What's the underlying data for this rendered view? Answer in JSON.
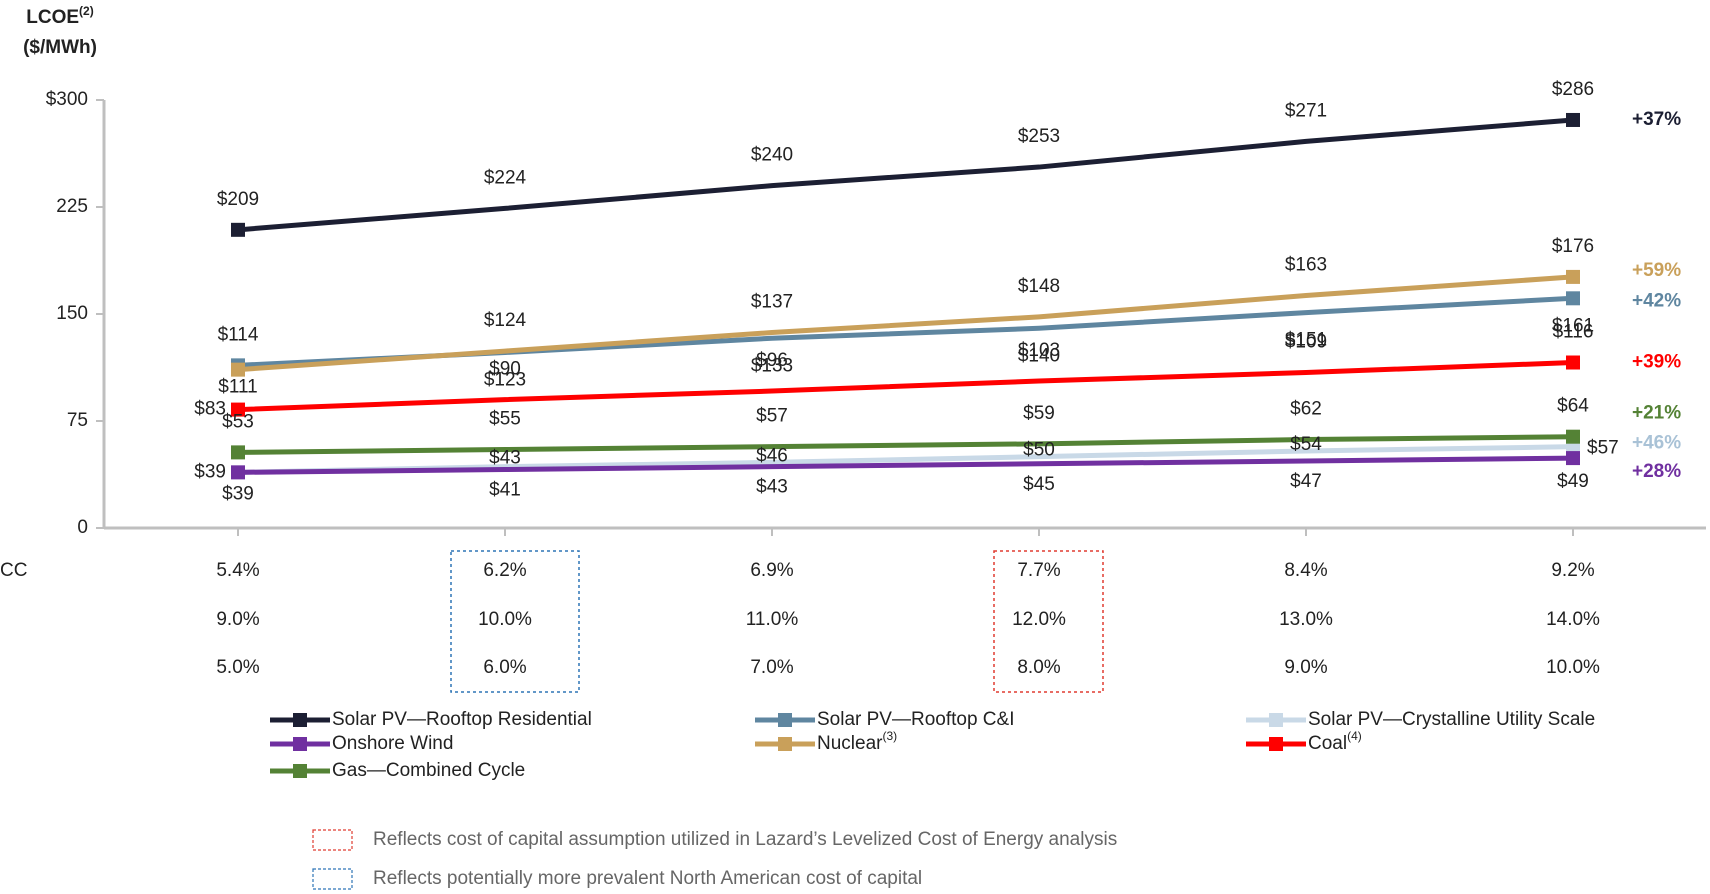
{
  "chart_data": {
    "type": "line",
    "y_title": [
      "LCOE",
      "($/MWh)"
    ],
    "y_title_note": "(2)",
    "categories": [
      null,
      null,
      null,
      null,
      null,
      null
    ],
    "ylim": [
      0,
      300
    ],
    "yticks": [
      0,
      75,
      150,
      225,
      {
        "value": 300,
        "label": "$300"
      }
    ],
    "series": [
      {
        "name": "Solar PV—Rooftop Residential",
        "color": "#1c1f33",
        "values": [
          209,
          224,
          240,
          253,
          271,
          286
        ],
        "value_labels": [
          "$209",
          "$224",
          "$240",
          "$253",
          "$271",
          "$286"
        ],
        "change": "+37%"
      },
      {
        "name": "Solar PV—Rooftop C&I",
        "color": "#5f86a0",
        "values": [
          114,
          123,
          133,
          140,
          151,
          161
        ],
        "value_labels": [
          "$114",
          "$123",
          "$133",
          "$140",
          "$151",
          "$161"
        ],
        "change": "+42%"
      },
      {
        "name": "Solar PV—Crystalline Utility Scale",
        "color": "#c9d9e7",
        "values": [
          39,
          43,
          46,
          50,
          54,
          57
        ],
        "value_labels": [
          "$39",
          "$43",
          "$46",
          "$50",
          "$54",
          "$57"
        ],
        "change": "+46%"
      },
      {
        "name": "Onshore Wind",
        "color": "#7030a0",
        "values": [
          39,
          41,
          43,
          45,
          47,
          49
        ],
        "value_labels": [
          "$39",
          "$41",
          "$43",
          "$45",
          "$47",
          "$49"
        ],
        "change": "+28%"
      },
      {
        "name": "Nuclear",
        "name_note": "(3)",
        "color": "#c9a05a",
        "values": [
          111,
          124,
          137,
          148,
          163,
          176
        ],
        "value_labels": [
          "$111",
          "$124",
          "$137",
          "$148",
          "$163",
          "$176"
        ],
        "change": "+59%"
      },
      {
        "name": "Coal",
        "name_note": "(4)",
        "color": "#ff0000",
        "values": [
          83,
          90,
          96,
          103,
          109,
          116
        ],
        "value_labels": [
          "$83",
          "$90",
          "$96",
          "$103",
          "$109",
          "$116"
        ],
        "change": "+39%"
      },
      {
        "name": "Gas—Combined Cycle",
        "color": "#548235",
        "values": [
          53,
          55,
          57,
          59,
          62,
          64
        ],
        "value_labels": [
          "$53",
          "$55",
          "$57",
          "$59",
          "$62",
          "$64"
        ],
        "change": "+21%"
      }
    ],
    "table": {
      "label": "CC",
      "rows": [
        [
          "5.4%",
          "6.2%",
          "6.9%",
          "7.7%",
          "8.4%",
          "9.2%"
        ],
        [
          "9.0%",
          "10.0%",
          "11.0%",
          "12.0%",
          "13.0%",
          "14.0%"
        ],
        [
          "5.0%",
          "6.0%",
          "7.0%",
          "8.0%",
          "9.0%",
          "10.0%"
        ]
      ]
    },
    "notes": [
      {
        "text": "Reflects cost of capital assumption utilized in Lazard’s Levelized Cost of Energy analysis",
        "color": "#e03c31"
      },
      {
        "text": "Reflects potentially more prevalent North American cost of capital",
        "color": "#2e75b6"
      }
    ]
  }
}
